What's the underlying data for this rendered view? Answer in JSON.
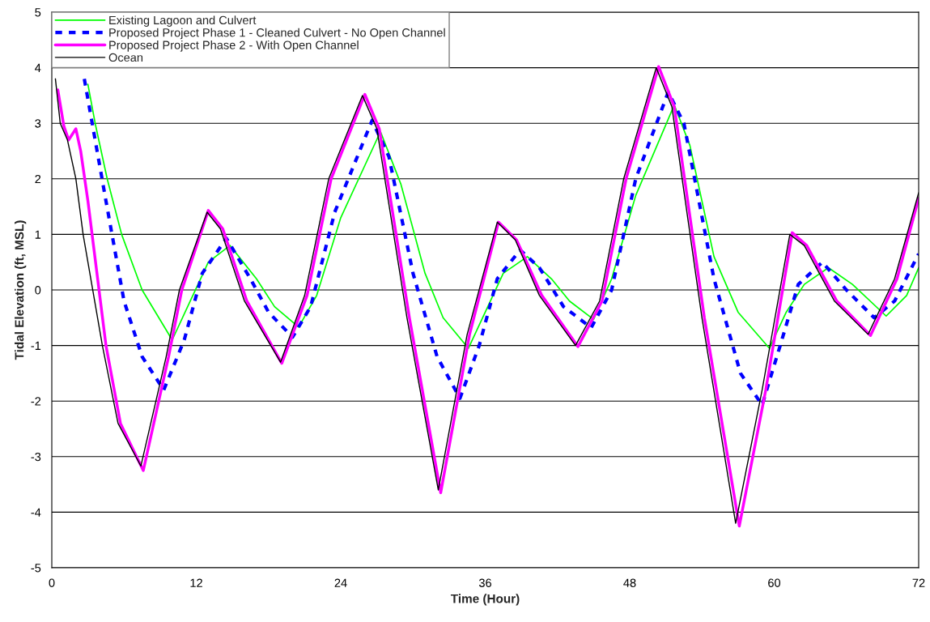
{
  "chart_data": {
    "type": "line",
    "xlabel": "Time (Hour)",
    "ylabel": "Tidal Elevation (ft, MSL)",
    "xlim": [
      0,
      72
    ],
    "xticks": [
      0,
      12,
      24,
      36,
      48,
      60,
      72
    ],
    "ylim": [
      -5,
      5
    ],
    "yticks": [
      -5,
      -4,
      -3,
      -2,
      -1,
      0,
      1,
      2,
      3,
      4,
      5
    ],
    "grid": "y",
    "legend": "top left",
    "marker": "none",
    "series": [
      {
        "name": "Existing Lagoon and Culvert",
        "color": "#00ff00",
        "line_style": "solid",
        "x": [
          3.0,
          3.6,
          4.6,
          5.8,
          7.5,
          10.0,
          11.5,
          13,
          14.8,
          17,
          18.5,
          20.5,
          22,
          24,
          27.3,
          29,
          31,
          32.5,
          34.6,
          36,
          37.5,
          39.5,
          41.5,
          43,
          45.0,
          46.5,
          48.5,
          51.7,
          53,
          55,
          57,
          59.6,
          61,
          62.5,
          64.5,
          66.5,
          69.3,
          71,
          72
        ],
        "values": [
          3.7,
          3.0,
          2.0,
          1.0,
          0.0,
          -0.9,
          -0.2,
          0.5,
          0.8,
          0.2,
          -0.3,
          -0.67,
          -0.1,
          1.3,
          2.85,
          1.9,
          0.3,
          -0.5,
          -1.05,
          -0.4,
          0.3,
          0.6,
          0.2,
          -0.2,
          -0.53,
          0.2,
          1.7,
          3.33,
          2.6,
          0.6,
          -0.4,
          -1.05,
          -0.4,
          0.1,
          0.4,
          0.1,
          -0.47,
          -0.1,
          0.4
        ]
      },
      {
        "name": "Proposed Project Phase 1 - Cleaned Culvert - No Open Channel",
        "color": "#0000ff",
        "line_style": "dashed",
        "x": [
          2.7,
          4.5,
          6,
          7.5,
          9.3,
          11,
          12.5,
          14.5,
          16.5,
          18,
          20,
          21.5,
          23.5,
          26.6,
          28,
          30,
          32,
          33.9,
          35.5,
          37,
          38.9,
          40.5,
          42.5,
          44.8,
          46.5,
          48.5,
          51.2,
          52.5,
          55,
          57.2,
          59.0,
          60.5,
          62,
          64,
          66,
          68.3,
          70,
          72
        ],
        "values": [
          3.8,
          1.6,
          -0.2,
          -1.2,
          -1.8,
          -0.9,
          0.3,
          0.93,
          0.2,
          -0.4,
          -0.85,
          -0.3,
          1.4,
          3.05,
          2.4,
          0.3,
          -1.2,
          -1.95,
          -1.0,
          0.2,
          0.72,
          0.4,
          -0.3,
          -0.68,
          0.0,
          2.0,
          3.56,
          3.0,
          0.2,
          -1.5,
          -2.07,
          -1.0,
          0.1,
          0.5,
          0.0,
          -0.5,
          -0.2,
          0.65
        ]
      },
      {
        "name": "Proposed Project Phase 2 - With Open Channel",
        "color": "#ff00ff",
        "line_style": "solid",
        "x": [
          0.5,
          1.0,
          1.4,
          2.0,
          2.4,
          3.0,
          4.5,
          5.7,
          7.6,
          9.7,
          10.8,
          13.0,
          14.2,
          16.2,
          19.1,
          21.2,
          23.2,
          26.0,
          27.2,
          29.7,
          32.3,
          34.7,
          37.1,
          38.6,
          40.7,
          43.7,
          45.7,
          47.7,
          50.4,
          51.7,
          54.2,
          57.1,
          59.3,
          61.5,
          62.7,
          65.2,
          68.0,
          70.2,
          72
        ],
        "values": [
          3.6,
          2.95,
          2.7,
          2.9,
          2.5,
          1.6,
          -1.0,
          -2.4,
          -3.25,
          -1.2,
          0.0,
          1.43,
          1.1,
          -0.2,
          -1.32,
          -0.1,
          2.0,
          3.52,
          2.9,
          -0.5,
          -3.65,
          -0.8,
          1.22,
          0.9,
          -0.1,
          -1.02,
          -0.2,
          2.0,
          4.02,
          3.3,
          -0.5,
          -4.25,
          -1.8,
          1.03,
          0.8,
          -0.2,
          -0.82,
          0.2,
          1.65
        ]
      },
      {
        "name": "Ocean",
        "color": "#000000",
        "line_style": "solid",
        "x": [
          0.3,
          0.7,
          1.3,
          2.0,
          2.6,
          4.2,
          5.5,
          7.4,
          9.5,
          10.6,
          12.9,
          14,
          16,
          19,
          21,
          23,
          25.8,
          27,
          29.5,
          32.1,
          34.5,
          37,
          38.5,
          40.5,
          43.5,
          45.5,
          47.5,
          50.2,
          51.5,
          54,
          56.8,
          59,
          61.3,
          62.5,
          65,
          67.8,
          70,
          72
        ],
        "values": [
          3.8,
          3.0,
          2.7,
          2.0,
          1.0,
          -1.0,
          -2.4,
          -3.17,
          -1.2,
          0.0,
          1.4,
          1.1,
          -0.2,
          -1.3,
          -0.1,
          2.0,
          3.5,
          2.9,
          -0.5,
          -3.6,
          -0.8,
          1.22,
          0.9,
          -0.1,
          -1.0,
          -0.2,
          2.0,
          4.0,
          3.3,
          -0.5,
          -4.2,
          -1.8,
          1.0,
          0.8,
          -0.2,
          -0.8,
          0.2,
          1.75
        ]
      }
    ]
  }
}
